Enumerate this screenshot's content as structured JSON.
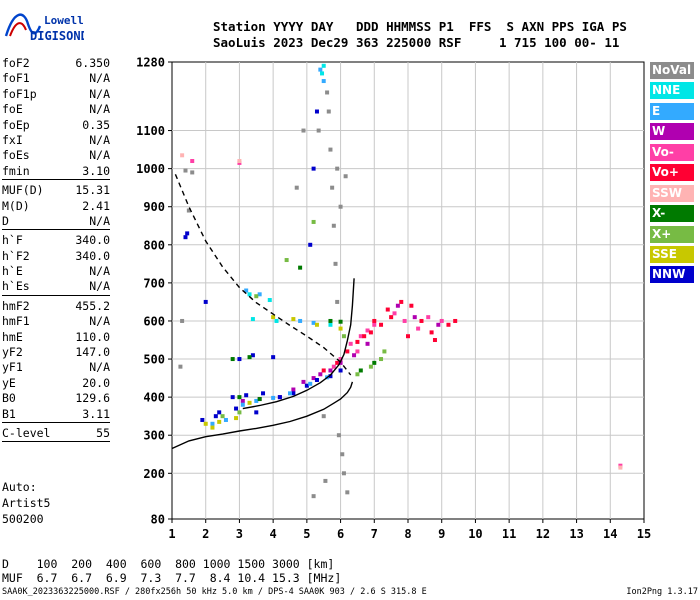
{
  "logo": {
    "line1": "Lowell",
    "line2": "DIGISONDE"
  },
  "header": {
    "line1": "Station YYYY DAY   DDD HHMMSS P1  FFS  S AXN PPS IGA PS",
    "line2": "SaoLuis 2023 Dec29 363 225000 RSF     1 715 100 00- 11"
  },
  "params_group1": [
    {
      "label": "foF2",
      "value": "6.350"
    },
    {
      "label": "foF1",
      "value": "N/A"
    },
    {
      "label": "foF1p",
      "value": "N/A"
    },
    {
      "label": "foE",
      "value": "N/A"
    },
    {
      "label": "foEp",
      "value": "0.35"
    },
    {
      "label": "fxI",
      "value": "N/A"
    },
    {
      "label": "foEs",
      "value": "N/A"
    },
    {
      "label": "fmin",
      "value": "3.10"
    }
  ],
  "params_group2": [
    {
      "label": "MUF(D)",
      "value": "15.31"
    },
    {
      "label": "M(D)",
      "value": "2.41"
    },
    {
      "label": "D",
      "value": "N/A"
    }
  ],
  "params_group3": [
    {
      "label": "h`F",
      "value": "340.0"
    },
    {
      "label": "h`F2",
      "value": "340.0"
    },
    {
      "label": "h`E",
      "value": "N/A"
    },
    {
      "label": "h`Es",
      "value": "N/A"
    }
  ],
  "params_group4": [
    {
      "label": "hmF2",
      "value": "455.2"
    },
    {
      "label": "hmF1",
      "value": "N/A"
    },
    {
      "label": "hmE",
      "value": "110.0"
    },
    {
      "label": "yF2",
      "value": "147.0"
    },
    {
      "label": "yF1",
      "value": "N/A"
    },
    {
      "label": "yE",
      "value": "20.0"
    },
    {
      "label": "B0",
      "value": "129.6"
    },
    {
      "label": "B1",
      "value": "3.11"
    }
  ],
  "params_group5": [
    {
      "label": "C-level",
      "value": "55"
    }
  ],
  "autoscale": {
    "line1": "Auto:",
    "line2": "Artist5",
    "line3": "500200"
  },
  "legend": [
    {
      "label": "NoVal",
      "color": "#8c8c8c"
    },
    {
      "label": "NNE",
      "color": "#00e6e6"
    },
    {
      "label": "E",
      "color": "#33aaff"
    },
    {
      "label": "W",
      "color": "#b000b0"
    },
    {
      "label": "Vo-",
      "color": "#ff3fa6"
    },
    {
      "label": "Vo+",
      "color": "#ff0033"
    },
    {
      "label": "SSW",
      "color": "#ffb3b3"
    },
    {
      "label": "X-",
      "color": "#007a00"
    },
    {
      "label": "X+",
      "color": "#77bb44"
    },
    {
      "label": "SSE",
      "color": "#c8c800"
    },
    {
      "label": "NNW",
      "color": "#0000cc"
    }
  ],
  "distance_table": {
    "line1": "D    100  200  400  600  800 1000 1500 3000 [km]",
    "line2": "MUF  6.7  6.7  6.9  7.3  7.7  8.4 10.4 15.3 [MHz]"
  },
  "footer": {
    "left": "SAA0K_2023363225000.RSF / 280fx256h 50 kHz 5.0 km / DPS-4 SAA0K 903 / 2.6 S 315.8 E",
    "right": "Ion2Png 1.3.17"
  },
  "chart_data": {
    "type": "scatter",
    "xlabel": "",
    "ylabel": "",
    "xlim": [
      1,
      15
    ],
    "ylim": [
      80,
      1280
    ],
    "x_ticks": [
      1,
      2,
      3,
      4,
      5,
      6,
      7,
      8,
      9,
      10,
      11,
      12,
      13,
      14,
      15
    ],
    "y_ticks": [
      80,
      200,
      300,
      400,
      500,
      600,
      700,
      800,
      900,
      1000,
      1100,
      1280
    ],
    "grid": true,
    "profile_curve": {
      "style": "solid",
      "points": [
        [
          1.0,
          265
        ],
        [
          1.5,
          285
        ],
        [
          2.0,
          296
        ],
        [
          2.5,
          303
        ],
        [
          3.0,
          311
        ],
        [
          3.5,
          318
        ],
        [
          4.0,
          326
        ],
        [
          4.5,
          336
        ],
        [
          5.0,
          350
        ],
        [
          5.5,
          368
        ],
        [
          5.8,
          384
        ],
        [
          6.0,
          395
        ],
        [
          6.2,
          412
        ],
        [
          6.3,
          426
        ],
        [
          6.35,
          440
        ]
      ]
    },
    "trace_curve": {
      "style": "solid",
      "points": [
        [
          3.1,
          370
        ],
        [
          3.6,
          378
        ],
        [
          4.1,
          388
        ],
        [
          4.6,
          402
        ],
        [
          5.0,
          418
        ],
        [
          5.4,
          438
        ],
        [
          5.7,
          458
        ],
        [
          5.95,
          485
        ],
        [
          6.1,
          512
        ],
        [
          6.2,
          548
        ],
        [
          6.3,
          590
        ],
        [
          6.35,
          640
        ],
        [
          6.4,
          712
        ]
      ]
    },
    "muf_curve": {
      "style": "dashed",
      "points": [
        [
          1.1,
          985
        ],
        [
          1.5,
          900
        ],
        [
          2.0,
          810
        ],
        [
          2.5,
          742
        ],
        [
          3.0,
          688
        ],
        [
          3.5,
          648
        ],
        [
          4.0,
          618
        ],
        [
          4.5,
          588
        ],
        [
          5.0,
          560
        ],
        [
          5.5,
          530
        ],
        [
          6.0,
          492
        ],
        [
          6.3,
          458
        ]
      ]
    },
    "series": [
      {
        "name": "Vo-",
        "color": "#ff3fa6",
        "points": [
          [
            6.3,
            540
          ],
          [
            6.6,
            560
          ],
          [
            6.8,
            575
          ],
          [
            7.0,
            590
          ],
          [
            7.6,
            620
          ],
          [
            7.9,
            600
          ],
          [
            8.3,
            580
          ],
          [
            8.6,
            610
          ],
          [
            9.0,
            600
          ],
          [
            5.8,
            480
          ],
          [
            6.0,
            500
          ],
          [
            6.5,
            520
          ],
          [
            14.3,
            220
          ],
          [
            1.6,
            1020
          ],
          [
            3.0,
            1015
          ]
        ]
      },
      {
        "name": "Vo+",
        "color": "#ff0033",
        "points": [
          [
            6.2,
            520
          ],
          [
            6.5,
            545
          ],
          [
            6.9,
            570
          ],
          [
            7.2,
            590
          ],
          [
            7.5,
            610
          ],
          [
            7.8,
            650
          ],
          [
            8.1,
            640
          ],
          [
            8.4,
            600
          ],
          [
            8.7,
            570
          ],
          [
            9.2,
            590
          ],
          [
            9.4,
            600
          ],
          [
            5.5,
            470
          ],
          [
            5.9,
            490
          ],
          [
            6.7,
            560
          ],
          [
            7.0,
            600
          ],
          [
            7.4,
            630
          ],
          [
            8.0,
            560
          ],
          [
            8.8,
            550
          ]
        ]
      },
      {
        "name": "W",
        "color": "#b000b0",
        "points": [
          [
            5.4,
            460
          ],
          [
            5.7,
            470
          ],
          [
            6.0,
            490
          ],
          [
            6.4,
            510
          ],
          [
            6.8,
            540
          ],
          [
            7.7,
            640
          ],
          [
            8.2,
            610
          ],
          [
            8.9,
            590
          ],
          [
            4.9,
            440
          ],
          [
            5.2,
            450
          ],
          [
            3.1,
            390
          ],
          [
            3.6,
            395
          ],
          [
            4.2,
            400
          ],
          [
            4.6,
            420
          ]
        ]
      },
      {
        "name": "NNW",
        "color": "#0000cc",
        "points": [
          [
            1.9,
            340
          ],
          [
            2.3,
            350
          ],
          [
            2.8,
            400
          ],
          [
            3.2,
            405
          ],
          [
            3.7,
            410
          ],
          [
            4.2,
            400
          ],
          [
            4.6,
            410
          ],
          [
            5.0,
            430
          ],
          [
            5.3,
            445
          ],
          [
            5.7,
            455
          ],
          [
            6.0,
            470
          ],
          [
            2.4,
            360
          ],
          [
            2.9,
            370
          ],
          [
            3.5,
            360
          ],
          [
            1.4,
            820
          ],
          [
            1.45,
            830
          ],
          [
            3.0,
            500
          ],
          [
            3.4,
            510
          ],
          [
            5.2,
            1000
          ],
          [
            5.3,
            1150
          ],
          [
            5.1,
            800
          ],
          [
            4.0,
            505
          ],
          [
            2.0,
            650
          ]
        ]
      },
      {
        "name": "E",
        "color": "#33aaff",
        "points": [
          [
            3.1,
            380
          ],
          [
            3.5,
            390
          ],
          [
            4.0,
            398
          ],
          [
            4.5,
            410
          ],
          [
            5.1,
            435
          ],
          [
            5.6,
            452
          ],
          [
            2.2,
            330
          ],
          [
            2.6,
            340
          ],
          [
            5.4,
            1260
          ],
          [
            5.5,
            1230
          ],
          [
            3.2,
            680
          ],
          [
            3.6,
            670
          ],
          [
            4.8,
            600
          ],
          [
            5.2,
            595
          ]
        ]
      },
      {
        "name": "NNE",
        "color": "#00e6e6",
        "points": [
          [
            5.5,
            1270
          ],
          [
            5.45,
            1250
          ],
          [
            3.4,
            605
          ],
          [
            4.1,
            600
          ],
          [
            5.7,
            590
          ],
          [
            3.9,
            655
          ],
          [
            3.3,
            670
          ]
        ]
      },
      {
        "name": "X-",
        "color": "#007a00",
        "points": [
          [
            6.6,
            470
          ],
          [
            7.0,
            490
          ],
          [
            3.0,
            400
          ],
          [
            3.6,
            395
          ],
          [
            2.8,
            500
          ],
          [
            3.3,
            505
          ],
          [
            5.7,
            600
          ],
          [
            6.0,
            598
          ],
          [
            4.8,
            740
          ]
        ]
      },
      {
        "name": "X+",
        "color": "#77bb44",
        "points": [
          [
            6.5,
            460
          ],
          [
            6.9,
            480
          ],
          [
            7.2,
            500
          ],
          [
            7.3,
            520
          ],
          [
            2.5,
            350
          ],
          [
            3.0,
            360
          ],
          [
            3.5,
            665
          ],
          [
            5.2,
            860
          ],
          [
            4.4,
            760
          ],
          [
            6.1,
            560
          ]
        ]
      },
      {
        "name": "SSE",
        "color": "#c8c800",
        "points": [
          [
            2.0,
            330
          ],
          [
            2.4,
            335
          ],
          [
            2.9,
            345
          ],
          [
            4.0,
            610
          ],
          [
            4.6,
            605
          ],
          [
            5.3,
            590
          ],
          [
            6.0,
            580
          ],
          [
            3.3,
            385
          ],
          [
            2.2,
            320
          ]
        ]
      },
      {
        "name": "SSW",
        "color": "#ffb3b3",
        "points": [
          [
            14.3,
            215
          ],
          [
            3.0,
            1020
          ],
          [
            1.3,
            1035
          ]
        ]
      },
      {
        "name": "NoVal",
        "color": "#8c8c8c",
        "points": [
          [
            5.6,
            1200
          ],
          [
            5.65,
            1150
          ],
          [
            5.7,
            1050
          ],
          [
            5.75,
            950
          ],
          [
            5.8,
            850
          ],
          [
            5.85,
            750
          ],
          [
            5.9,
            650
          ],
          [
            5.95,
            300
          ],
          [
            6.05,
            250
          ],
          [
            6.1,
            200
          ],
          [
            6.2,
            150
          ],
          [
            5.5,
            350
          ],
          [
            5.55,
            180
          ],
          [
            5.2,
            140
          ],
          [
            5.35,
            1100
          ],
          [
            5.9,
            1000
          ],
          [
            6.0,
            900
          ],
          [
            6.15,
            980
          ],
          [
            4.7,
            950
          ],
          [
            4.9,
            1100
          ],
          [
            1.4,
            995
          ],
          [
            1.5,
            890
          ],
          [
            1.6,
            990
          ],
          [
            1.3,
            600
          ],
          [
            1.25,
            480
          ]
        ]
      }
    ]
  }
}
